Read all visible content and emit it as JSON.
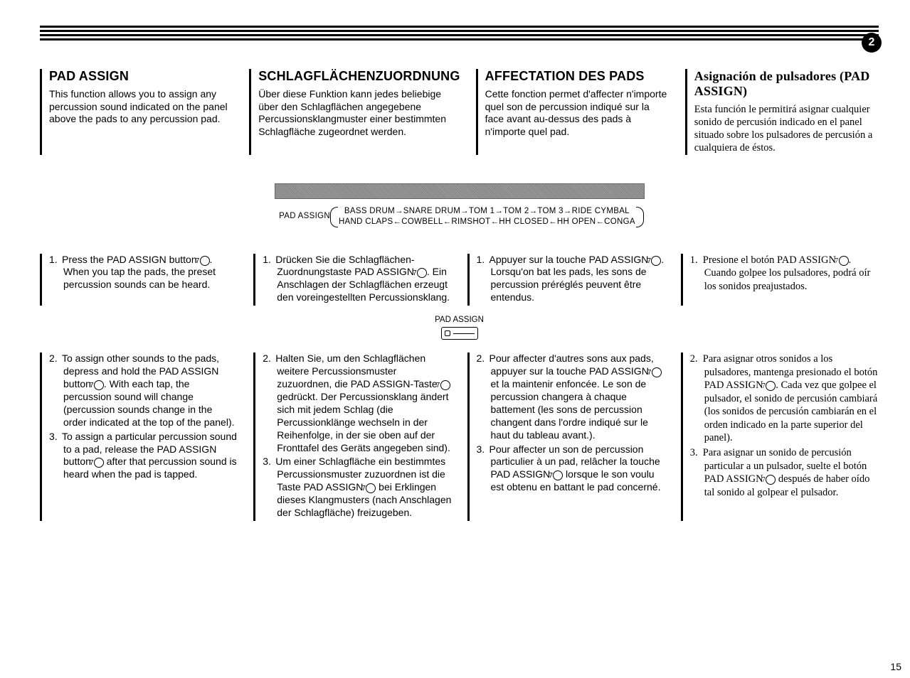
{
  "page_number_badge": "2",
  "page_number_bottom": "15",
  "circled_ref": "7",
  "headers": {
    "en": "PAD ASSIGN",
    "de": "SCHLAGFLÄCHENZUORDNUNG",
    "fr": "AFFECTATION DES PADS",
    "es": "Asignación de pulsadores (PAD ASSIGN)"
  },
  "intro": {
    "en": "This function allows you to assign any percussion sound indicated on the panel above the pads to any percussion pad.",
    "de": "Über diese Funktion kann jedes beliebige über den Schlagflächen angegebene Percussionsklangmuster einer bestimmten Schlagfläche zugeordnet werden.",
    "fr": "Cette fonction permet d'affecter n'importe quel son de percussion indiqué sur la face avant au-dessus des pads à n'importe quel pad.",
    "es": "Esta función le permitirá asignar cualquier sonido de percusión indicado en el panel situado sobre los pulsadores de percusión a cualquiera de éstos."
  },
  "cycle": {
    "label": "PAD ASSIGN",
    "top": "BASS DRUM→SNARE DRUM→TOM 1→TOM 2→TOM 3→RIDE CYMBAL",
    "bottom": "HAND CLAPS←COWBELL←RIMSHOT←HH CLOSED←HH OPEN←CONGA"
  },
  "step1": {
    "en_a": "Press the PAD ASSIGN button ",
    "en_b": ". When you tap the pads, the preset percussion sounds can be heard.",
    "de_a": "Drücken Sie die Schlagflächen-Zuordnungstaste PAD ASSIGN ",
    "de_b": ". Ein Anschlagen der Schlagflächen erzeugt den voreingestellten Percussionsklang.",
    "fr_a": "Appuyer sur la touche PAD ASSIGN ",
    "fr_b": ". Lorsqu'on bat les pads, les sons de percussion préréglés peuvent être entendus.",
    "es_a": "Presione el botón PAD ASSIGN ",
    "es_b": ". Cuando golpee los pulsadores, podrá oír los sonidos preajustados."
  },
  "button_label": "PAD ASSIGN",
  "step2": {
    "en_a": "To assign other sounds to the pads, depress and hold the PAD ASSIGN button ",
    "en_b": ". With each tap, the percussion sound will change (percussion sounds change in the order indicated at the top of the panel).",
    "de_a": "Halten Sie, um den Schlagflächen weitere Percussionsmuster zuzuordnen, die PAD ASSIGN-Taste ",
    "de_b": " gedrückt. Der Percussionsklang ändert sich mit jedem Schlag (die Percussionklänge wechseln in der Reihenfolge, in der sie oben auf der Fronttafel des Geräts angegeben sind).",
    "fr_a": "Pour affecter d'autres sons aux pads, appuyer sur la touche PAD ASSIGN ",
    "fr_b": " et la maintenir enfoncée. Le son de percussion changera à chaque battement (les sons de percussion changent dans l'ordre indiqué sur le haut du tableau avant.).",
    "es_a": "Para asignar otros sonidos a los pulsadores, mantenga presionado el botón PAD ASSIGN ",
    "es_b": ". Cada vez que golpee el pulsador, el sonido de percusión cambiará (los sonidos de percusión cambiarán en el orden indicado en la parte superior del panel)."
  },
  "step3": {
    "en_a": "To assign a particular percussion sound to a pad, release the PAD ASSIGN button ",
    "en_b": " after that percussion sound is heard when the pad is tapped.",
    "de_a": "Um einer Schlagfläche ein bestimmtes Percussionsmuster zuzuordnen ist die Taste PAD ASSIGN ",
    "de_b": " bei Erklingen dieses Klangmusters (nach Anschlagen der Schlagfläche) freizugeben.",
    "fr_a": "Pour affecter un son de percussion particulier à un pad, relâcher la touche PAD ASSIGN ",
    "fr_b": " lorsque le son voulu est obtenu en battant le pad concerné.",
    "es_a": "Para asignar un sonido de percusión particular a un pulsador, suelte el botón PAD ASSIGN ",
    "es_b": " después de haber oído tal sonido al golpear el pulsador."
  }
}
